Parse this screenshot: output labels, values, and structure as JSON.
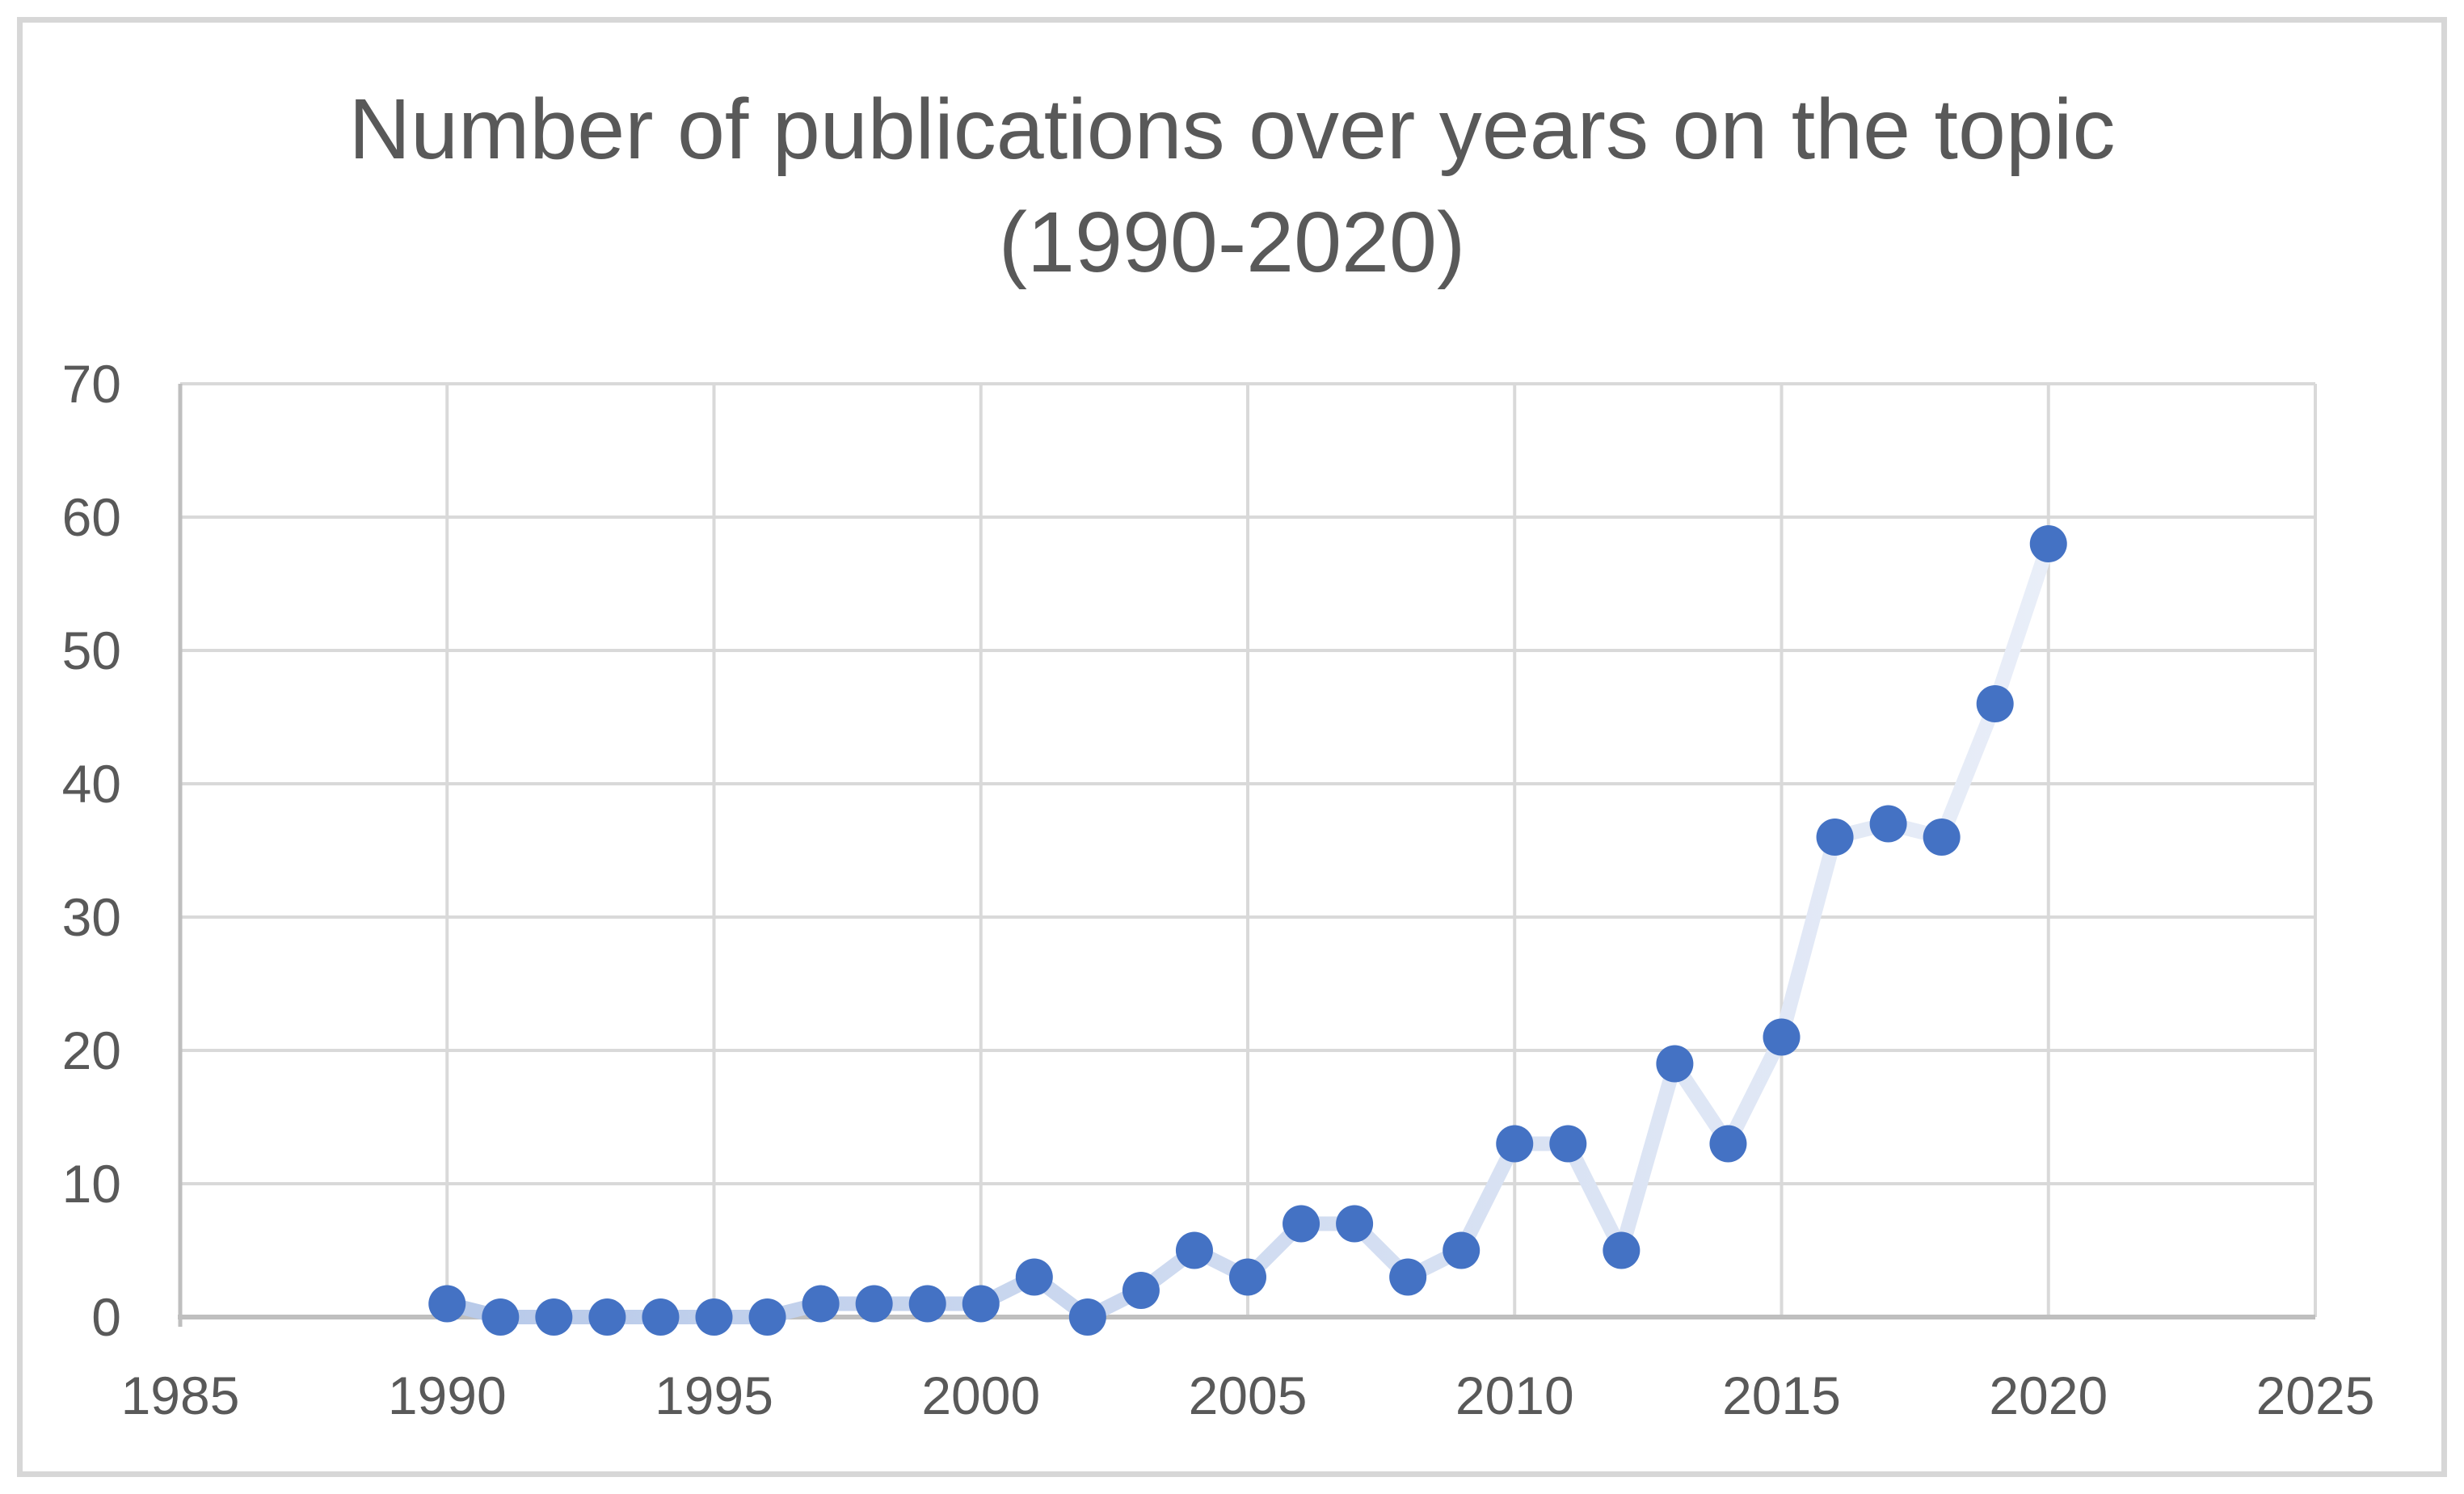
{
  "title": {
    "line1": "Number of publications over years on the topic",
    "line2": "(1990-2020)"
  },
  "chart_data": {
    "type": "line",
    "title": "Number of publications over years on the topic (1990-2020)",
    "x": [
      1990,
      1991,
      1992,
      1993,
      1994,
      1995,
      1996,
      1997,
      1998,
      1999,
      2000,
      2001,
      2002,
      2003,
      2004,
      2005,
      2006,
      2007,
      2008,
      2009,
      2010,
      2011,
      2012,
      2013,
      2014,
      2015,
      2016,
      2017,
      2018,
      2019,
      2020
    ],
    "values": [
      1,
      0,
      0,
      0,
      0,
      0,
      0,
      1,
      1,
      1,
      1,
      3,
      0,
      2,
      5,
      3,
      7,
      7,
      3,
      5,
      13,
      13,
      5,
      19,
      13,
      21,
      36,
      37,
      36,
      46,
      58
    ],
    "xlabel": "",
    "ylabel": "",
    "xlim": [
      1985,
      2025
    ],
    "ylim": [
      0,
      70
    ],
    "x_ticks": [
      "1985",
      "1990",
      "1995",
      "2000",
      "2005",
      "2010",
      "2015",
      "2020",
      "2025"
    ],
    "y_ticks": [
      "0",
      "10",
      "20",
      "30",
      "40",
      "50",
      "60",
      "70"
    ],
    "grid": true,
    "legend": false,
    "marker_shape": "circle",
    "colors": {
      "marker": "#4472C4",
      "line_gradient_start": "#B7C9E9",
      "line_gradient_end": "#E9EEF8",
      "gridline": "#D9D9D9",
      "axis": "#BFBFBF",
      "label": "#595959",
      "title": "#595959",
      "frame_border": "#D7D7D7"
    }
  }
}
